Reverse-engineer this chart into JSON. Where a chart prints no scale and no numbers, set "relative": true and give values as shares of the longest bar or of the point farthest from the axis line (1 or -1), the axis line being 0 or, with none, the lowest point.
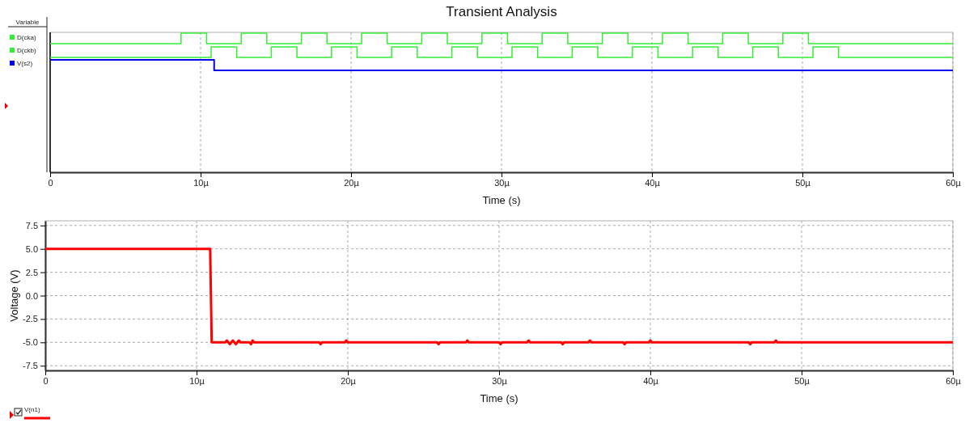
{
  "chart_data": [
    {
      "type": "step",
      "title": "Transient Analysis",
      "xlabel": "Time (s)",
      "relative": true,
      "legend": "left",
      "legend_title": "Variable",
      "grid": "x",
      "xlim": [
        0,
        60
      ],
      "xticks": [
        0,
        {
          "value": 10,
          "label": "10µ"
        },
        {
          "value": 20,
          "label": "20µ"
        },
        {
          "value": 30,
          "label": "30µ"
        },
        {
          "value": 40,
          "label": "40µ"
        },
        {
          "value": 50,
          "label": "50µ"
        },
        {
          "value": 60,
          "label": "60µ"
        }
      ],
      "series": [
        {
          "name": "D(cka)",
          "color": "#33ee33",
          "x": [
            0,
            8.7,
            10.4,
            12.7,
            14.4,
            16.7,
            18.4,
            20.7,
            22.4,
            24.7,
            26.4,
            28.7,
            30.4,
            32.7,
            34.4,
            36.7,
            38.4,
            40.7,
            42.4,
            44.7,
            46.4,
            48.7,
            50.4,
            60
          ],
          "values": [
            0.924,
            1,
            0.924,
            1,
            0.924,
            1,
            0.924,
            1,
            0.924,
            1,
            0.924,
            1,
            0.924,
            1,
            0.924,
            1,
            0.924,
            1,
            0.924,
            1,
            0.924,
            1,
            0.924,
            0.924
          ]
        },
        {
          "name": "D(ckb)",
          "color": "#33ee33",
          "x": [
            0,
            10.7,
            12.4,
            14.7,
            16.4,
            18.7,
            20.4,
            22.7,
            24.4,
            26.7,
            28.4,
            30.7,
            32.4,
            34.7,
            36.4,
            38.7,
            40.4,
            42.7,
            44.4,
            46.7,
            48.4,
            50.7,
            52.4,
            60
          ],
          "values": [
            0.826,
            0.901,
            0.826,
            0.901,
            0.826,
            0.901,
            0.826,
            0.901,
            0.826,
            0.901,
            0.826,
            0.901,
            0.826,
            0.901,
            0.826,
            0.901,
            0.826,
            0.901,
            0.826,
            0.901,
            0.826,
            0.901,
            0.826,
            0.826
          ]
        },
        {
          "name": "V(s2)",
          "color": "#0000ee",
          "x": [
            0,
            10.9,
            60
          ],
          "values": [
            0.808,
            0.733,
            0.733
          ]
        }
      ]
    },
    {
      "type": "line",
      "xlabel": "Time (s)",
      "ylabel": "Voltage (V)",
      "legend": "bottom left",
      "grid": true,
      "xlim": [
        0,
        60
      ],
      "xticks": [
        0,
        {
          "value": 10,
          "label": "10µ"
        },
        {
          "value": 20,
          "label": "20µ"
        },
        {
          "value": 30,
          "label": "30µ"
        },
        {
          "value": 40,
          "label": "40µ"
        },
        {
          "value": 50,
          "label": "50µ"
        },
        {
          "value": 60,
          "label": "60µ"
        }
      ],
      "ylim": [
        -8,
        8
      ],
      "yticks": [
        {
          "value": -7.5,
          "label": "-7.5"
        },
        {
          "value": -5,
          "label": "-5.0"
        },
        {
          "value": -2.5,
          "label": "-2.5"
        },
        {
          "value": 0,
          "label": "0.0"
        },
        {
          "value": 2.5,
          "label": "2.5"
        },
        {
          "value": 5,
          "label": "5.0"
        },
        {
          "value": 7.5,
          "label": "7.5"
        }
      ],
      "series": [
        {
          "name": "V(n1)",
          "color": "#ff0000",
          "x": [
            0,
            10.9,
            11.0,
            11.9,
            12.0,
            12.1,
            12.2,
            12.3,
            12.4,
            12.5,
            12.6,
            12.7,
            12.8,
            12.9,
            13.5,
            13.6,
            13.65,
            13.7,
            13.8,
            18.1,
            18.2,
            18.3,
            19.8,
            19.9,
            20.0,
            25.9,
            26.0,
            26.1,
            27.8,
            27.9,
            28.0,
            30.0,
            30.1,
            30.2,
            31.85,
            31.95,
            32.05,
            34.1,
            34.2,
            34.3,
            35.9,
            36.0,
            36.1,
            38.2,
            38.3,
            38.4,
            39.9,
            40.0,
            40.1,
            46.5,
            46.6,
            46.7,
            48.2,
            48.3,
            48.4,
            60
          ],
          "values": [
            5,
            5,
            -5,
            -5,
            -4.8,
            -5,
            -5.2,
            -5,
            -4.8,
            -5,
            -5.2,
            -5,
            -4.8,
            -5,
            -5,
            -5.2,
            -5,
            -4.8,
            -5,
            -5,
            -5.2,
            -5,
            -5,
            -4.8,
            -5,
            -5,
            -5.2,
            -5,
            -5,
            -4.8,
            -5,
            -5,
            -5.2,
            -5,
            -5,
            -4.8,
            -5,
            -5,
            -5.2,
            -5,
            -5,
            -4.8,
            -5,
            -5,
            -5.2,
            -5,
            -5,
            -4.8,
            -5,
            -5,
            -5.2,
            -5,
            -5,
            -4.8,
            -5,
            -5
          ]
        }
      ]
    }
  ]
}
